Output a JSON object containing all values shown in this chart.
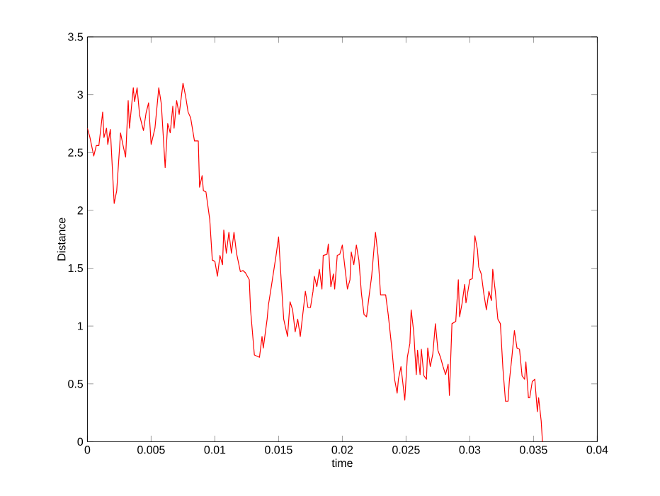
{
  "chart_data": {
    "type": "line",
    "xlabel": "time",
    "ylabel": "Distance",
    "xlim": [
      0,
      0.04
    ],
    "ylim": [
      0,
      3.5
    ],
    "xticks": [
      0,
      0.005,
      0.01,
      0.015,
      0.02,
      0.025,
      0.03,
      0.035,
      0.04
    ],
    "yticks": [
      0,
      0.5,
      1,
      1.5,
      2,
      2.5,
      3,
      3.5
    ],
    "marker": "none",
    "line_style": "solid",
    "series": [
      {
        "color": "#ff0000",
        "x": [
          0,
          0.0002,
          0.0005,
          0.0007,
          0.0009,
          0.0012,
          0.0013,
          0.0015,
          0.0016,
          0.0018,
          0.0021,
          0.0023,
          0.0026,
          0.0028,
          0.003,
          0.0032,
          0.0033,
          0.0036,
          0.0037,
          0.0039,
          0.0041,
          0.0044,
          0.0046,
          0.0048,
          0.005,
          0.0053,
          0.0056,
          0.0058,
          0.0061,
          0.0063,
          0.0065,
          0.0067,
          0.0068,
          0.007,
          0.0072,
          0.0075,
          0.0077,
          0.0079,
          0.0081,
          0.0084,
          0.0087,
          0.0088,
          0.009,
          0.0091,
          0.0093,
          0.0096,
          0.0098,
          0.01,
          0.0102,
          0.0104,
          0.0106,
          0.0107,
          0.0109,
          0.0111,
          0.0113,
          0.0115,
          0.0117,
          0.012,
          0.0122,
          0.0124,
          0.0127,
          0.0128,
          0.0131,
          0.0135,
          0.0137,
          0.0138,
          0.0141,
          0.0142,
          0.0144,
          0.0148,
          0.015,
          0.0152,
          0.0154,
          0.0157,
          0.0159,
          0.0161,
          0.0163,
          0.0165,
          0.0167,
          0.017,
          0.0171,
          0.0173,
          0.0175,
          0.0177,
          0.0178,
          0.018,
          0.0182,
          0.0184,
          0.0185,
          0.0188,
          0.0189,
          0.0191,
          0.0193,
          0.0194,
          0.0196,
          0.0198,
          0.02,
          0.0202,
          0.0204,
          0.0206,
          0.0207,
          0.0209,
          0.0211,
          0.0213,
          0.0215,
          0.0217,
          0.0219,
          0.0221,
          0.0223,
          0.0225,
          0.0226,
          0.0228,
          0.023,
          0.0234,
          0.0236,
          0.0239,
          0.0241,
          0.0243,
          0.0244,
          0.0246,
          0.0249,
          0.0251,
          0.0253,
          0.0254,
          0.0256,
          0.0258,
          0.0259,
          0.0261,
          0.0262,
          0.0264,
          0.0266,
          0.0267,
          0.0269,
          0.0271,
          0.0273,
          0.0275,
          0.0277,
          0.0279,
          0.0281,
          0.0283,
          0.0284,
          0.0286,
          0.0289,
          0.0291,
          0.0292,
          0.0294,
          0.0296,
          0.0297,
          0.03,
          0.0302,
          0.0304,
          0.0306,
          0.0307,
          0.0309,
          0.0311,
          0.0313,
          0.0315,
          0.0317,
          0.0318,
          0.032,
          0.0322,
          0.0324,
          0.0326,
          0.0328,
          0.033,
          0.0331,
          0.0333,
          0.0335,
          0.0337,
          0.0339,
          0.0341,
          0.0343,
          0.0344,
          0.0346,
          0.0347,
          0.0349,
          0.0351,
          0.0353,
          0.0354,
          0.0356,
          0.0357
        ],
        "values": [
          2.71,
          2.63,
          2.47,
          2.56,
          2.56,
          2.85,
          2.63,
          2.71,
          2.57,
          2.7,
          2.06,
          2.17,
          2.67,
          2.56,
          2.46,
          2.95,
          2.71,
          3.06,
          2.94,
          3.06,
          2.82,
          2.69,
          2.84,
          2.93,
          2.57,
          2.71,
          3.06,
          2.92,
          2.37,
          2.75,
          2.67,
          2.9,
          2.71,
          2.95,
          2.83,
          3.1,
          2.99,
          2.85,
          2.8,
          2.6,
          2.6,
          2.2,
          2.3,
          2.17,
          2.16,
          1.92,
          1.57,
          1.56,
          1.43,
          1.61,
          1.53,
          1.83,
          1.63,
          1.81,
          1.63,
          1.81,
          1.63,
          1.47,
          1.48,
          1.46,
          1.4,
          1.14,
          0.75,
          0.73,
          0.91,
          0.81,
          1.06,
          1.18,
          1.32,
          1.61,
          1.77,
          1.4,
          1.06,
          0.91,
          1.21,
          1.14,
          0.95,
          1.06,
          0.91,
          1.2,
          1.3,
          1.16,
          1.16,
          1.3,
          1.43,
          1.34,
          1.49,
          1.32,
          1.61,
          1.62,
          1.71,
          1.34,
          1.45,
          1.32,
          1.61,
          1.62,
          1.7,
          1.51,
          1.32,
          1.4,
          1.64,
          1.53,
          1.7,
          1.57,
          1.28,
          1.1,
          1.08,
          1.26,
          1.43,
          1.69,
          1.81,
          1.61,
          1.27,
          1.27,
          1.1,
          0.79,
          0.54,
          0.42,
          0.54,
          0.65,
          0.36,
          0.73,
          0.85,
          1.14,
          0.95,
          0.58,
          0.79,
          0.58,
          0.8,
          0.57,
          0.54,
          0.81,
          0.65,
          0.76,
          1.02,
          0.79,
          0.73,
          0.65,
          0.58,
          0.67,
          0.4,
          1.02,
          1.04,
          1.4,
          1.08,
          1.2,
          1.36,
          1.2,
          1.4,
          1.41,
          1.78,
          1.66,
          1.51,
          1.45,
          1.28,
          1.14,
          1.3,
          1.22,
          1.49,
          1.3,
          1.06,
          1.02,
          0.63,
          0.35,
          0.35,
          0.52,
          0.73,
          0.96,
          0.81,
          0.8,
          0.57,
          0.54,
          0.69,
          0.38,
          0.38,
          0.52,
          0.54,
          0.26,
          0.38,
          0.18,
          0.0
        ]
      }
    ]
  }
}
